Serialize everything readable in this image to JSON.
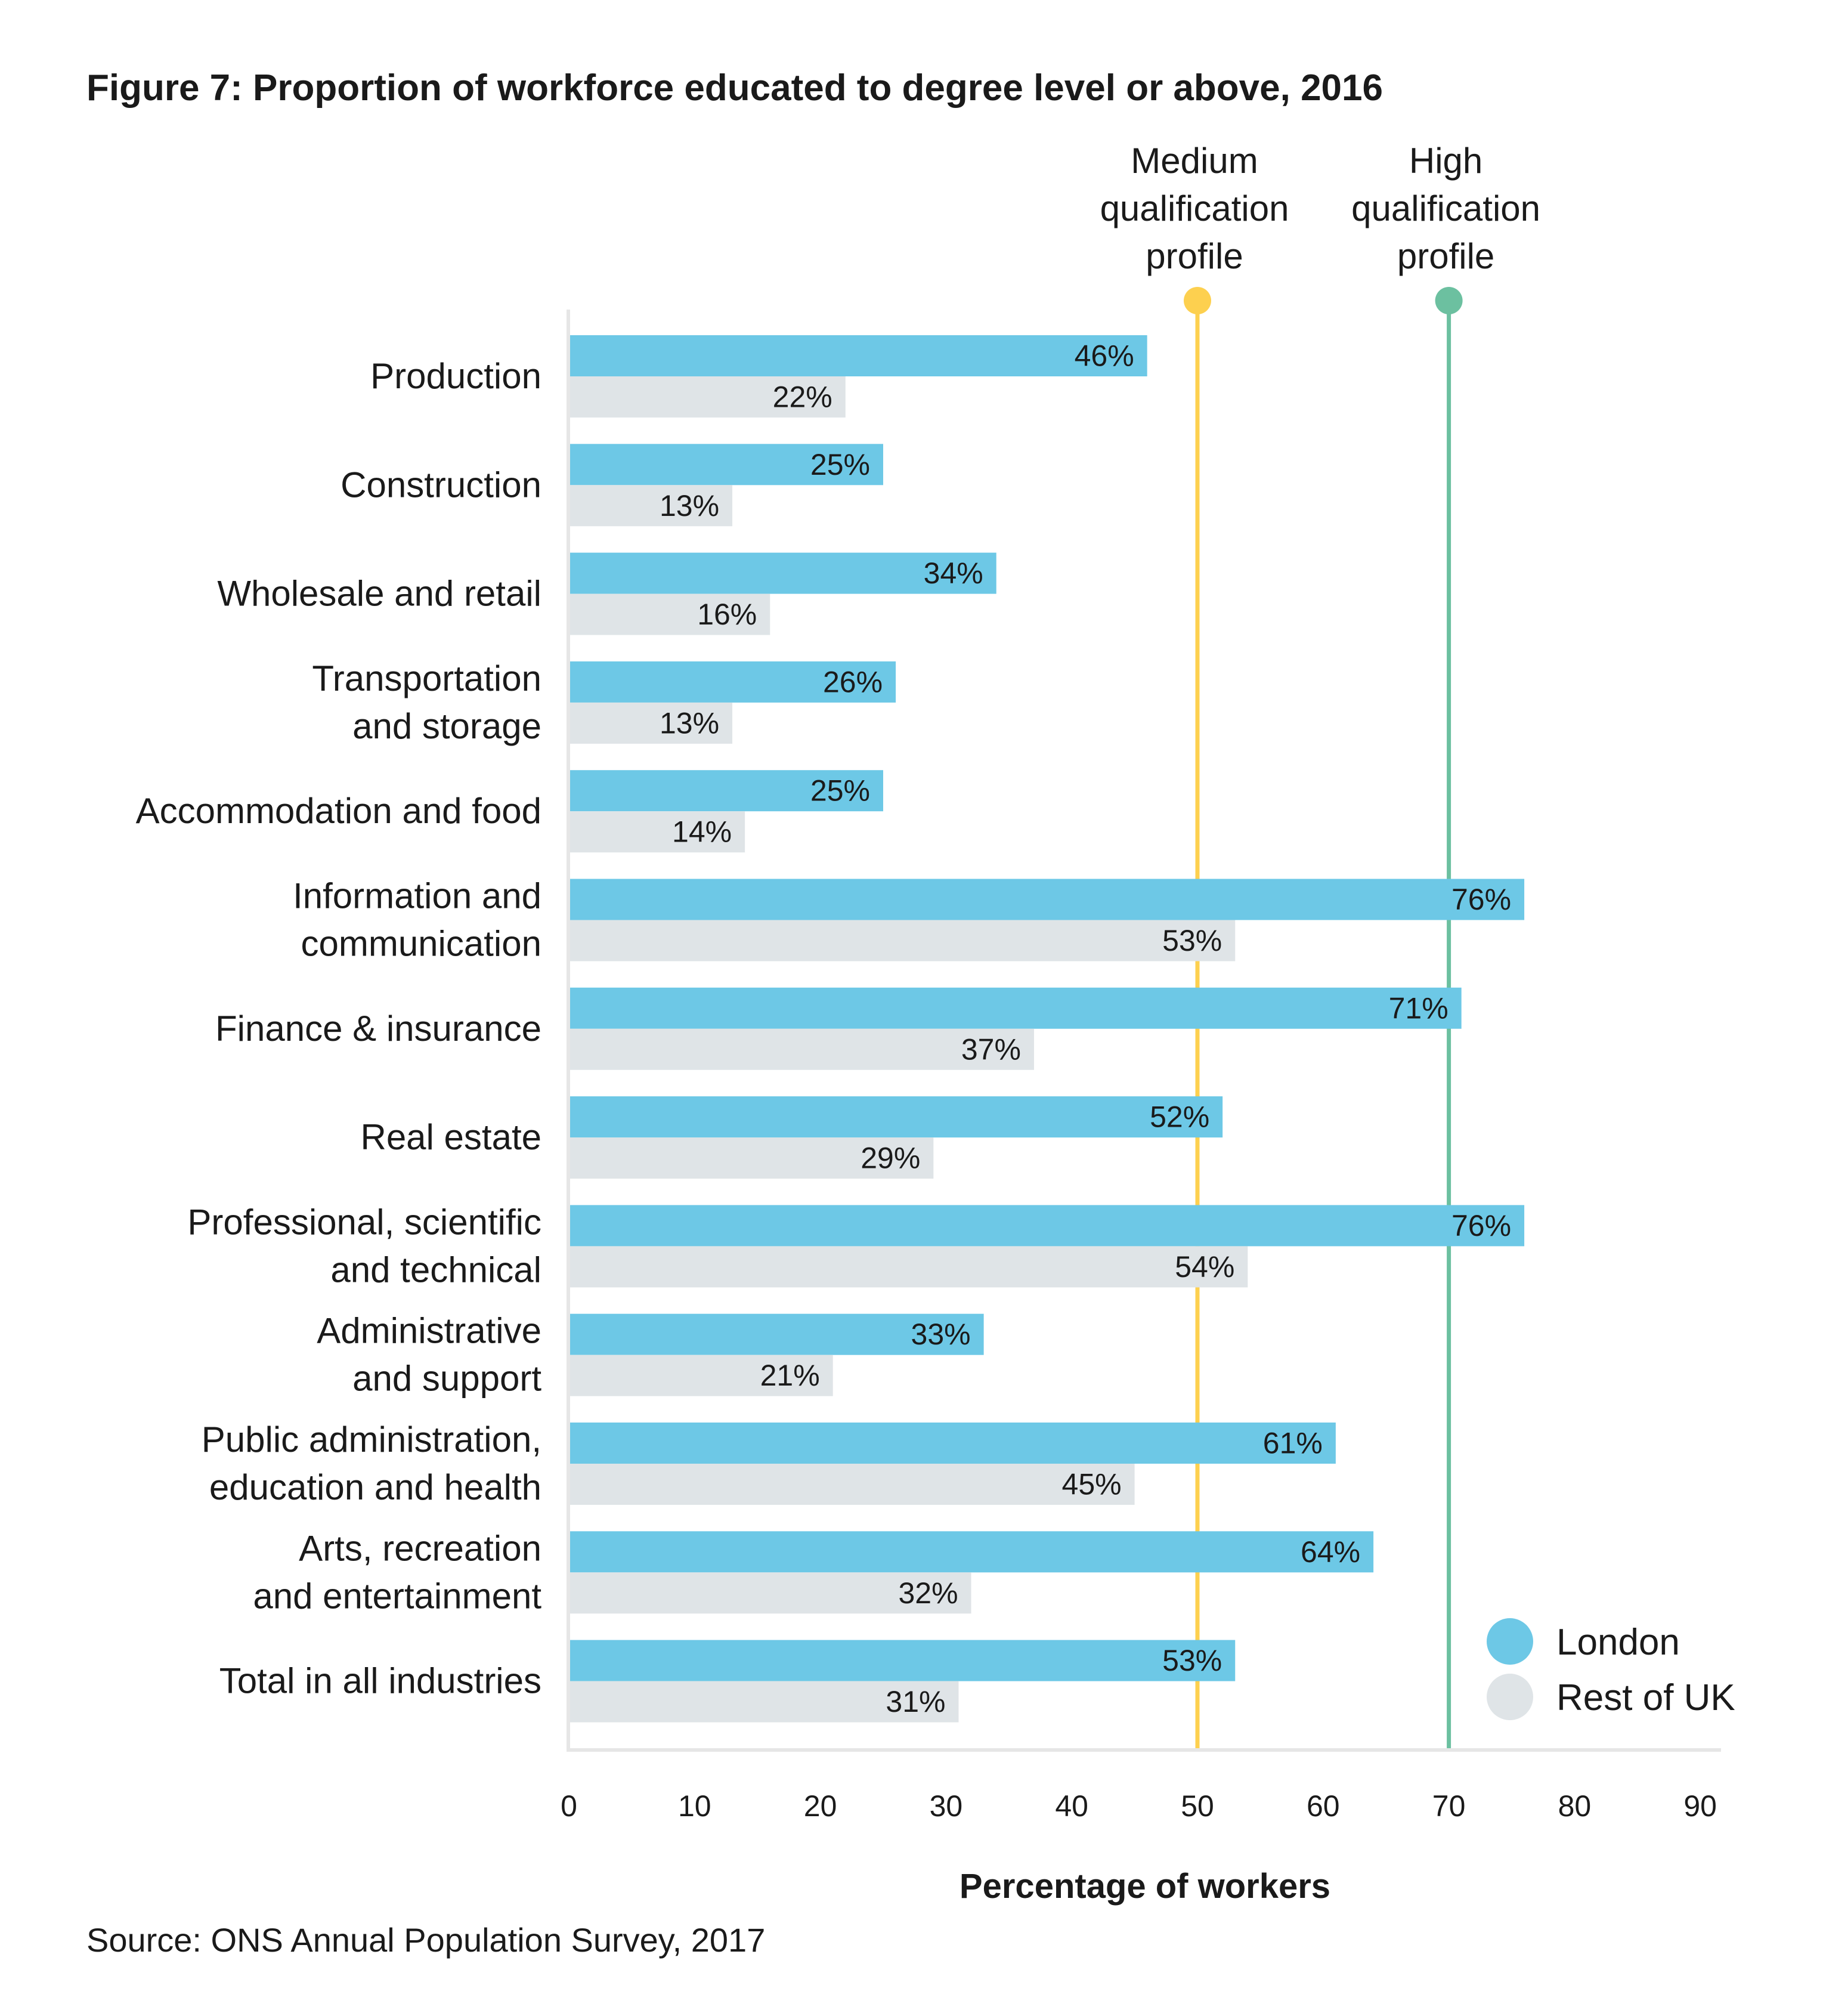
{
  "chart_data": {
    "type": "bar",
    "orientation": "horizontal",
    "title": "Figure 7: Proportion of workforce educated to degree level or above, 2016",
    "xlabel": "Percentage of workers",
    "ylabel": "",
    "xlim": [
      0,
      90
    ],
    "xticks": [
      "0",
      "10",
      "20",
      "30",
      "40",
      "50",
      "60",
      "70",
      "80",
      "90"
    ],
    "grid": false,
    "legend_position": "bottom-right",
    "categories": [
      [
        "Production"
      ],
      [
        "Construction"
      ],
      [
        "Wholesale and retail"
      ],
      [
        "Transportation",
        "and storage"
      ],
      [
        "Accommodation and food"
      ],
      [
        "Information and",
        "communication"
      ],
      [
        "Finance & insurance"
      ],
      [
        "Real estate"
      ],
      [
        "Professional, scientific",
        "and technical"
      ],
      [
        "Administrative",
        "and support"
      ],
      [
        "Public administration,",
        "education and health"
      ],
      [
        "Arts, recreation",
        "and entertainment"
      ],
      [
        "Total in all industries"
      ]
    ],
    "series": [
      {
        "name": "London",
        "color": "#6DC8E6",
        "values": [
          46,
          25,
          34,
          26,
          25,
          76,
          71,
          52,
          76,
          33,
          61,
          64,
          53
        ]
      },
      {
        "name": "Rest of UK",
        "color": "#DFE4E7",
        "values": [
          22,
          13,
          16,
          13,
          14,
          53,
          37,
          29,
          54,
          21,
          45,
          32,
          31
        ]
      }
    ],
    "value_label_suffix": "%",
    "reference_lines": [
      {
        "value": 50,
        "label": [
          "Medium",
          "qualification",
          "profile"
        ],
        "color": "#FDD04F"
      },
      {
        "value": 70,
        "label": [
          "High",
          "qualification",
          "profile"
        ],
        "color": "#6CC0A0"
      }
    ],
    "source": "Source: ONS Annual Population Survey, 2017"
  }
}
